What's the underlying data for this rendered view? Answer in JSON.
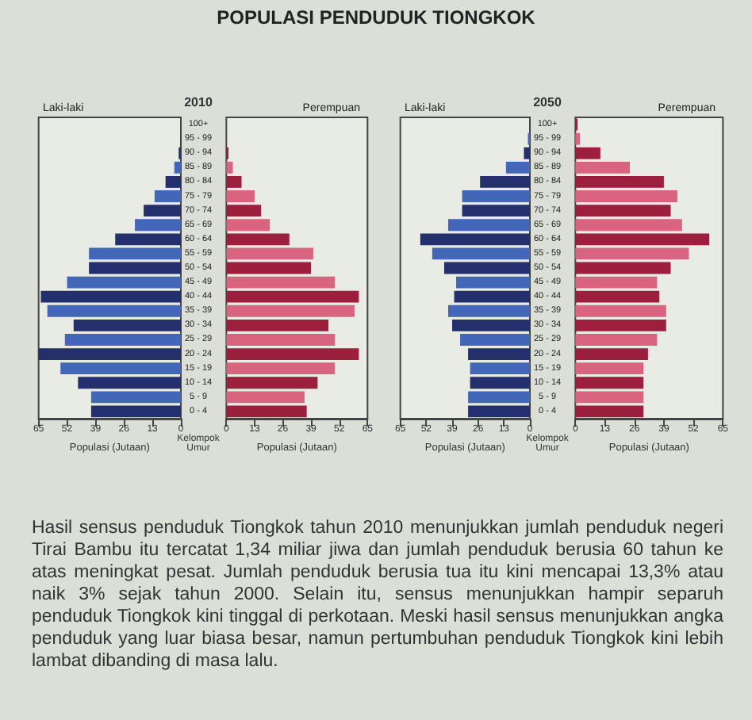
{
  "chart_data": [
    {
      "type": "bar",
      "orientation": "horizontal",
      "title": "POPULASI PENDUDUK TIONGKOK",
      "xlabel": "Populasi (Jutaan)",
      "annotations": [
        "2010",
        "Kelompok Umur",
        "Hasil sensus penduduk Tiongkok tahun 2010 menunjukkan jumlah penduduk negeri Tirai Bambu itu tercatat 1,34 miliar jiwa dan jumlah penduduk berusia 60 tahun ke atas meningkat pesat. Jumlah penduduk berusia tua itu kini mencapai 13,3% atau naik 3% sejak tahun 2000. Selain itu, sensus menunjukkan hampir separuh penduduk Tiongkok kini tinggal di perkotaan. Meski hasil sensus menunjukkan angka penduduk yang luar biasa besar, namun pertumbuhan penduduk Tiongkok kini lebih lambat dibanding di masa lalu."
      ],
      "categories": [
        "100+",
        "95 - 99",
        "90 - 94",
        "85 - 89",
        "80 - 84",
        "75 - 79",
        "70 - 74",
        "65 - 69",
        "60 - 64",
        "55 - 59",
        "50 - 54",
        "45 - 49",
        "40 - 44",
        "35 - 39",
        "30 - 34",
        "25 - 29",
        "20 - 24",
        "15 - 19",
        "10 - 14",
        "5 - 9",
        "0 - 4"
      ],
      "xlim": [
        65,
        0
      ],
      "xticks": [
        65,
        52,
        39,
        26,
        13,
        0
      ],
      "series": [
        {
          "name": "Laki-laki",
          "colors": [
            "#24306e",
            "#4266b8",
            "#24306e",
            "#4266b8",
            "#24306e",
            "#4266b8",
            "#24306e",
            "#4266b8",
            "#24306e",
            "#4266b8",
            "#24306e",
            "#4266b8",
            "#24306e",
            "#4266b8",
            "#24306e",
            "#4266b8",
            "#24306e",
            "#4266b8",
            "#24306e",
            "#4266b8",
            "#24306e"
          ],
          "values": [
            0,
            0,
            1,
            3,
            7,
            12,
            17,
            21,
            30,
            42,
            42,
            52,
            64,
            61,
            49,
            53,
            65,
            55,
            47,
            41,
            41
          ]
        }
      ]
    },
    {
      "type": "bar",
      "orientation": "horizontal",
      "xlabel": "Populasi (Jutaan)",
      "tick_labels": "x",
      "categories": [
        null,
        null,
        null,
        null,
        null,
        null,
        null,
        null,
        null,
        null,
        null,
        null,
        null,
        null,
        null,
        null,
        null,
        null,
        null,
        null,
        null
      ],
      "xlim": [
        0,
        65
      ],
      "xticks": [
        0,
        13,
        26,
        39,
        52,
        65
      ],
      "series": [
        {
          "name": "Perempuan",
          "colors": [
            "#9c1f3e",
            "#d9647f",
            "#9c1f3e",
            "#d9647f",
            "#9c1f3e",
            "#d9647f",
            "#9c1f3e",
            "#d9647f",
            "#9c1f3e",
            "#d9647f",
            "#9c1f3e",
            "#d9647f",
            "#9c1f3e",
            "#d9647f",
            "#9c1f3e",
            "#d9647f",
            "#9c1f3e",
            "#d9647f",
            "#9c1f3e",
            "#d9647f",
            "#9c1f3e"
          ],
          "values": [
            0,
            0,
            1,
            3,
            7,
            13,
            16,
            20,
            29,
            40,
            39,
            50,
            61,
            59,
            47,
            50,
            61,
            50,
            42,
            36,
            37
          ]
        }
      ]
    },
    {
      "type": "bar",
      "orientation": "horizontal",
      "xlabel": "Populasi (Jutaan)",
      "annotations": [
        "2050",
        "Kelompok Umur"
      ],
      "categories": [
        "100+",
        "95 - 99",
        "90 - 94",
        "85 - 89",
        "80 - 84",
        "75 - 79",
        "70 - 74",
        "65 - 69",
        "60 - 64",
        "55 - 59",
        "50 - 54",
        "45 - 49",
        "40 - 44",
        "35 - 39",
        "30 - 34",
        "25 - 29",
        "20 - 24",
        "15 - 19",
        "10 - 14",
        "5 - 9",
        "0 - 4"
      ],
      "xlim": [
        65,
        0
      ],
      "xticks": [
        65,
        52,
        39,
        26,
        13,
        0
      ],
      "series": [
        {
          "name": "Laki-laki",
          "colors": [
            "#24306e",
            "#4266b8",
            "#24306e",
            "#4266b8",
            "#24306e",
            "#4266b8",
            "#24306e",
            "#4266b8",
            "#24306e",
            "#4266b8",
            "#24306e",
            "#4266b8",
            "#24306e",
            "#4266b8",
            "#24306e",
            "#4266b8",
            "#24306e",
            "#4266b8",
            "#24306e",
            "#4266b8",
            "#24306e"
          ],
          "values": [
            0,
            1,
            3,
            12,
            25,
            34,
            34,
            41,
            55,
            49,
            43,
            37,
            38,
            41,
            39,
            35,
            31,
            30,
            30,
            31,
            31
          ]
        }
      ]
    },
    {
      "type": "bar",
      "orientation": "horizontal",
      "xlabel": "Populasi (Jutaan)",
      "tick_labels": "x",
      "categories": [
        null,
        null,
        null,
        null,
        null,
        null,
        null,
        null,
        null,
        null,
        null,
        null,
        null,
        null,
        null,
        null,
        null,
        null,
        null,
        null,
        null
      ],
      "xlim": [
        0,
        65
      ],
      "xticks": [
        0,
        13,
        26,
        39,
        52,
        65
      ],
      "series": [
        {
          "name": "Perempuan",
          "colors": [
            "#9c1f3e",
            "#d9647f",
            "#9c1f3e",
            "#d9647f",
            "#9c1f3e",
            "#d9647f",
            "#9c1f3e",
            "#d9647f",
            "#9c1f3e",
            "#d9647f",
            "#9c1f3e",
            "#d9647f",
            "#9c1f3e",
            "#d9647f",
            "#9c1f3e",
            "#d9647f",
            "#9c1f3e",
            "#d9647f",
            "#9c1f3e",
            "#d9647f",
            "#9c1f3e"
          ],
          "values": [
            1,
            2,
            11,
            24,
            39,
            45,
            42,
            47,
            59,
            50,
            42,
            36,
            37,
            40,
            40,
            36,
            32,
            30,
            30,
            30,
            30
          ]
        }
      ]
    }
  ]
}
